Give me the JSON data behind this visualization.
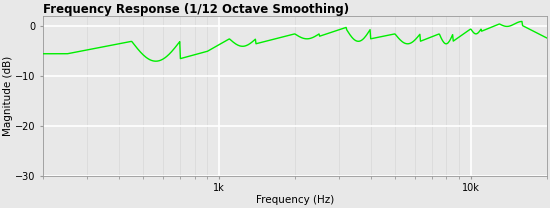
{
  "title": "Frequency Response (1/12 Octave Smoothing)",
  "xlabel": "Frequency (Hz)",
  "ylabel": "Magnitude (dB)",
  "xlim": [
    200,
    20000
  ],
  "ylim": [
    -30,
    2
  ],
  "yticks": [
    0,
    -10,
    -20,
    -30
  ],
  "xticks": [
    1000,
    10000
  ],
  "xtick_labels": [
    "1k",
    "10k"
  ],
  "line_color": "#00ee00",
  "bg_color": "#e8e8e8",
  "plot_bg_color": "#e8e8e8",
  "grid_color": "#ffffff",
  "minor_grid_color": "#d8d8d8",
  "title_fontsize": 8.5,
  "axis_fontsize": 7.5,
  "tick_fontsize": 7,
  "line_width": 1.0,
  "figsize": [
    5.5,
    2.08
  ],
  "dpi": 100
}
